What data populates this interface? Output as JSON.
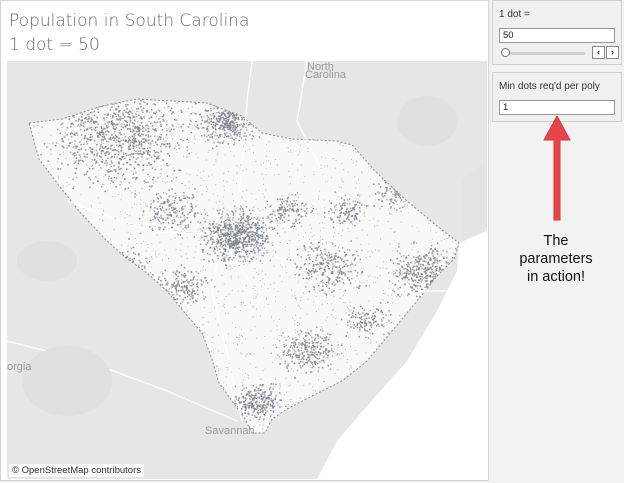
{
  "title": {
    "line1": "Population in South Carolina",
    "line2": "1 dot = 50"
  },
  "map": {
    "labels": {
      "north_carolina_1": "North",
      "north_carolina_2": "Carolina",
      "georgia": "orgia",
      "savannah": "Savannah"
    },
    "attribution": "© OpenStreetMap contributors",
    "dot_color": "#7a8189",
    "background_color": "#e5e6e5",
    "land_color": "#fbfbfb"
  },
  "parameters": {
    "dot_value": {
      "label": "1 dot =",
      "value": "50",
      "slider_position": 0.0,
      "prev_icon": "chevron-left-icon",
      "next_icon": "chevron-right-icon"
    },
    "min_dots": {
      "label": "Min dots req'd per poly",
      "value": "1"
    }
  },
  "annotation": {
    "text_line1": "The",
    "text_line2": "parameters",
    "text_line3": "in action!",
    "arrow_color": "#e8454b",
    "arrow_icon": "arrow-up-icon"
  }
}
